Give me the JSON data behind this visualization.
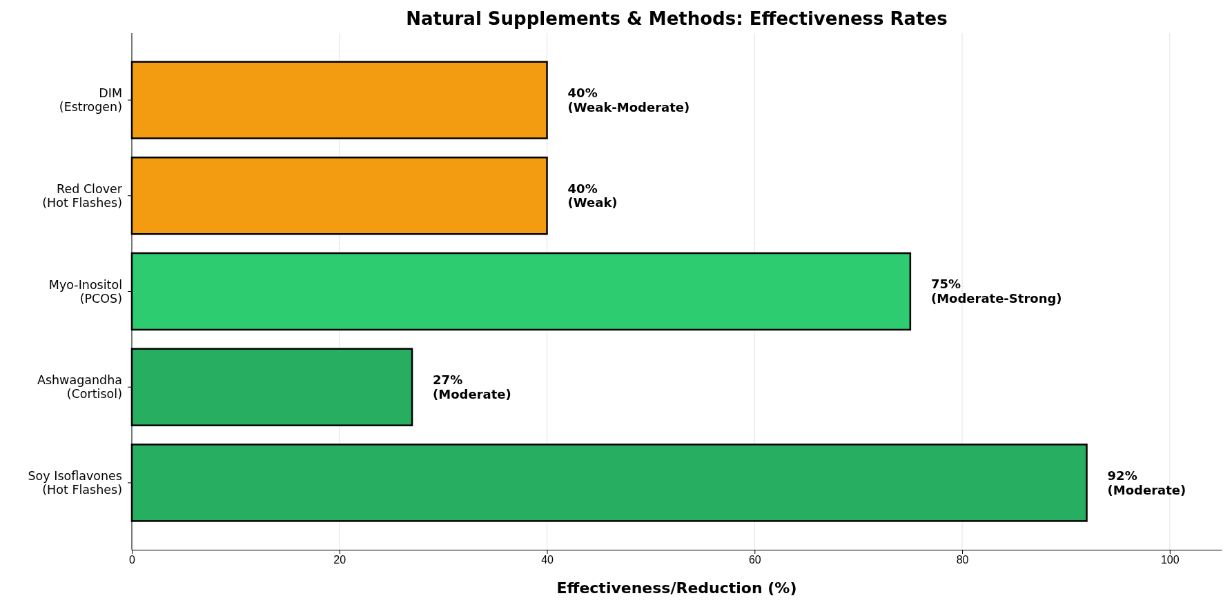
{
  "chart_data": {
    "type": "bar",
    "orientation": "horizontal",
    "title": "Natural Supplements & Methods: Effectiveness Rates",
    "xlabel": "Effectiveness/Reduction (%)",
    "categories": [
      "DIM\n(Estrogen)",
      "Red Clover\n(Hot Flashes)",
      "Myo-Inositol\n(PCOS)",
      "Ashwagandha\n(Cortisol)",
      "Soy Isoflavones\n(Hot Flashes)"
    ],
    "values": [
      40,
      40,
      75,
      27,
      92
    ],
    "colors": [
      "#f39c12",
      "#f39c12",
      "#2ecc71",
      "#27ae60",
      "#27ae60"
    ],
    "value_labels": [
      "40%\n(Weak-Moderate)",
      "40%\n(Weak)",
      "75%\n(Moderate-Strong)",
      "27%\n(Moderate)",
      "92%\n(Moderate)"
    ],
    "xlim": [
      0,
      105
    ],
    "xticks": [
      0,
      20,
      40,
      60,
      80,
      100
    ],
    "grid": "x"
  }
}
